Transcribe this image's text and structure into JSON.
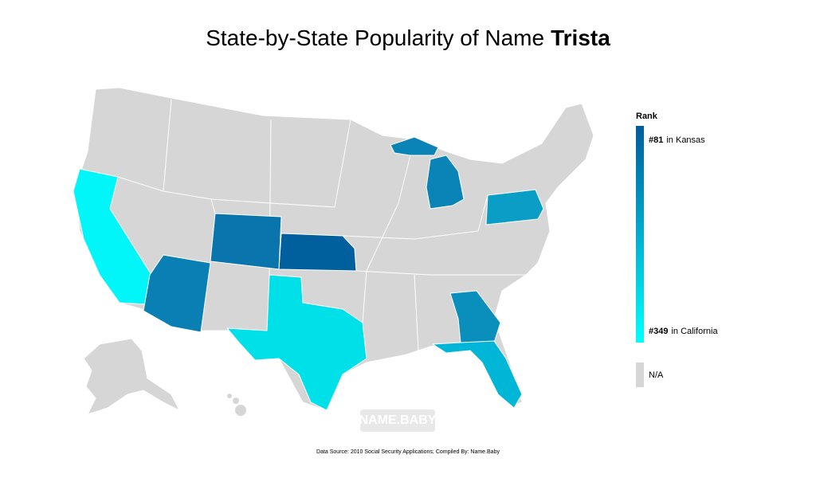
{
  "title": {
    "prefix": "State-by-State Popularity of Name",
    "name": "Trista"
  },
  "legend": {
    "title": "Rank",
    "high": {
      "rank": "#81",
      "place": "in Kansas"
    },
    "low": {
      "rank": "#349",
      "place": "in California"
    },
    "na": "N/A"
  },
  "watermark": "NAME.BABY",
  "source": "Data Source: 2010 Social Security Applications; Compiled By: Name.Baby",
  "na_color": "#d6d6d6",
  "scale_colors": [
    "#005b9a",
    "#00ffff"
  ],
  "highlight_colors": [
    "#00f6f8",
    "#005f9d",
    "#0a74ad",
    "#0a7fb3",
    "#0a84b6",
    "#0a8ebc",
    "#0a9ec6",
    "#00b6d6",
    "#00e0e8"
  ]
}
